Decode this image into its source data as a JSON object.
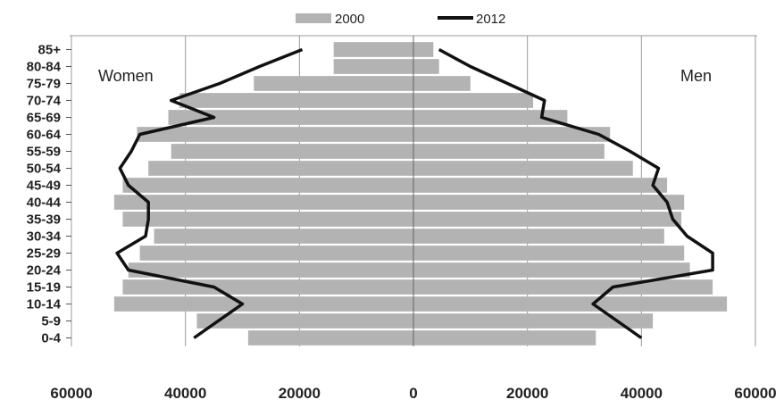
{
  "chart_data": {
    "type": "bar",
    "subtype": "population-pyramid",
    "categories": [
      "85+",
      "80-84",
      "75-79",
      "70-74",
      "65-69",
      "60-64",
      "55-59",
      "50-54",
      "45-49",
      "40-44",
      "35-39",
      "30-34",
      "25-29",
      "20-24",
      "15-19",
      "10-14",
      "5-9",
      "0-4"
    ],
    "side_labels": {
      "left": "Women",
      "right": "Men"
    },
    "series": [
      {
        "name": "2000",
        "kind": "bar",
        "color": "#b3b3b3",
        "women": [
          14000,
          14000,
          28000,
          41000,
          43000,
          48500,
          42500,
          46500,
          51000,
          52500,
          51000,
          45500,
          48000,
          50000,
          51000,
          52500,
          38000,
          29000
        ],
        "men": [
          3500,
          4500,
          10000,
          21000,
          27000,
          34500,
          33500,
          38500,
          44500,
          47500,
          47000,
          44000,
          47500,
          48500,
          52500,
          55000,
          42000,
          32000
        ]
      },
      {
        "name": "2012",
        "kind": "line",
        "color": "#111111",
        "women": [
          19500,
          27000,
          34000,
          42500,
          35000,
          48000,
          49500,
          51500,
          50000,
          46500,
          46500,
          47000,
          52000,
          50000,
          35000,
          30000,
          null,
          38500
        ],
        "men": [
          4500,
          10000,
          16500,
          23000,
          22500,
          32500,
          38000,
          43000,
          42000,
          44500,
          45500,
          48000,
          52500,
          52500,
          35000,
          31500,
          null,
          40000
        ]
      }
    ],
    "x_ticks": [
      "60000",
      "40000",
      "20000",
      "0",
      "20000",
      "40000",
      "60000"
    ],
    "xlim": [
      -60000,
      60000
    ],
    "legend_position": "top-center",
    "grid": "vertical"
  }
}
